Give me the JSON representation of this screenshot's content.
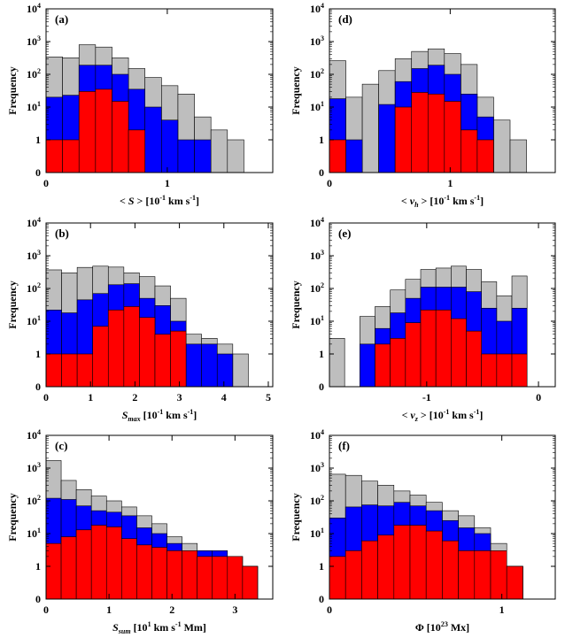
{
  "colors": {
    "all": "#bebebe",
    "mid": "#0000ff",
    "strong": "#ff0000",
    "edge": "#000000"
  },
  "chart_data": [
    {
      "id": "a",
      "type": "bar",
      "panel_label": "(a)",
      "xlabel": "< S > [10-1 km s-1]",
      "xlabel_parts": [
        {
          "t": "< "
        },
        {
          "t": "S",
          "i": true
        },
        {
          "t": " > [10"
        },
        {
          "t": "-1",
          "sup": true
        },
        {
          "t": " km s"
        },
        {
          "t": "-1",
          "sup": true
        },
        {
          "t": "]"
        }
      ],
      "ylabel": "Frequency",
      "xlim": [
        0,
        1.87
      ],
      "bin_width": 0.136,
      "bin_start": 0,
      "xticks": [
        {
          "v": 0,
          "label": "0"
        },
        {
          "v": 1,
          "label": "1"
        }
      ],
      "yticks": [
        "0",
        "1",
        "10",
        "10²",
        "10³",
        "10⁴"
      ],
      "series": [
        {
          "color": "all",
          "values": [
            340,
            320,
            800,
            680,
            320,
            150,
            80,
            45,
            25,
            5,
            2,
            1
          ]
        },
        {
          "color": "mid",
          "values": [
            20,
            23,
            190,
            190,
            100,
            35,
            10,
            4,
            1,
            1,
            0,
            0
          ]
        },
        {
          "color": "strong",
          "values": [
            1,
            1,
            30,
            35,
            15,
            2,
            0,
            0,
            0,
            0,
            0,
            0
          ]
        }
      ]
    },
    {
      "id": "d",
      "type": "bar",
      "panel_label": "(d)",
      "xlabel": "< vh > [10-1 km s-1]",
      "xlabel_parts": [
        {
          "t": "< "
        },
        {
          "t": "v",
          "i": true
        },
        {
          "t": "h",
          "sub": true,
          "i": true
        },
        {
          "t": " > [10"
        },
        {
          "t": "-1",
          "sup": true
        },
        {
          "t": " km s"
        },
        {
          "t": "-1",
          "sup": true
        },
        {
          "t": "]"
        }
      ],
      "ylabel": "Frequency",
      "xlim": [
        0,
        1.87
      ],
      "bin_width": 0.136,
      "bin_start": 0,
      "xticks": [
        {
          "v": 0,
          "label": "0"
        },
        {
          "v": 1,
          "label": "1"
        }
      ],
      "yticks": [
        "0",
        "1",
        "10",
        "10²",
        "10³",
        "10⁴"
      ],
      "series": [
        {
          "color": "all",
          "values": [
            260,
            20,
            50,
            130,
            300,
            500,
            600,
            430,
            200,
            20,
            4,
            1
          ]
        },
        {
          "color": "mid",
          "values": [
            18,
            1,
            0,
            12,
            60,
            150,
            190,
            100,
            25,
            5,
            0,
            0
          ]
        },
        {
          "color": "strong",
          "values": [
            1,
            0,
            0,
            0,
            10,
            28,
            25,
            15,
            2,
            1,
            0,
            0
          ]
        }
      ]
    },
    {
      "id": "b",
      "type": "bar",
      "panel_label": "(b)",
      "xlabel": "Smax [10-1 km s-1]",
      "xlabel_parts": [
        {
          "t": "S",
          "i": true
        },
        {
          "t": "max",
          "sub": true,
          "i": true
        },
        {
          "t": " [10"
        },
        {
          "t": "-1",
          "sup": true
        },
        {
          "t": " km s"
        },
        {
          "t": "-1",
          "sup": true
        },
        {
          "t": "]"
        }
      ],
      "ylabel": "Frequency",
      "xlim": [
        0,
        5.1
      ],
      "bin_width": 0.35,
      "bin_start": 0,
      "xticks": [
        {
          "v": 0,
          "label": "0"
        },
        {
          "v": 1,
          "label": "1"
        },
        {
          "v": 2,
          "label": "2"
        },
        {
          "v": 3,
          "label": "3"
        },
        {
          "v": 4,
          "label": "4"
        },
        {
          "v": 5,
          "label": "5"
        }
      ],
      "yticks": [
        "0",
        "1",
        "10",
        "10²",
        "10³",
        "10⁴"
      ],
      "series": [
        {
          "color": "all",
          "values": [
            370,
            300,
            440,
            480,
            450,
            300,
            230,
            120,
            50,
            4,
            3,
            2,
            1,
            0
          ]
        },
        {
          "color": "mid",
          "values": [
            22,
            18,
            45,
            70,
            130,
            140,
            50,
            30,
            10,
            2,
            2,
            1,
            0,
            0
          ]
        },
        {
          "color": "strong",
          "values": [
            1,
            1,
            1,
            7,
            22,
            28,
            13,
            4,
            5,
            0,
            0,
            0,
            0,
            0
          ]
        }
      ]
    },
    {
      "id": "e",
      "type": "bar",
      "panel_label": "(e)",
      "xlabel": "< vz > [10-1 km s-1]",
      "xlabel_parts": [
        {
          "t": "< "
        },
        {
          "t": "v",
          "i": true
        },
        {
          "t": "z",
          "sub": true,
          "i": true
        },
        {
          "t": " > [10"
        },
        {
          "t": "-1",
          "sup": true
        },
        {
          "t": " km s"
        },
        {
          "t": "-1",
          "sup": true
        },
        {
          "t": "]"
        }
      ],
      "ylabel": "Frequency",
      "xlim": [
        -1.87,
        0.15
      ],
      "bin_width": 0.136,
      "bin_start": -1.87,
      "xticks": [
        {
          "v": -1,
          "label": "-1"
        },
        {
          "v": 0,
          "label": "0"
        }
      ],
      "yticks": [
        "0",
        "1",
        "10",
        "10²",
        "10³",
        "10⁴"
      ],
      "series": [
        {
          "color": "all",
          "values": [
            3,
            0,
            14,
            28,
            90,
            190,
            380,
            420,
            480,
            380,
            160,
            60,
            240,
            0
          ]
        },
        {
          "color": "mid",
          "values": [
            0,
            0,
            2,
            6,
            18,
            50,
            110,
            110,
            110,
            80,
            25,
            10,
            25,
            0
          ]
        },
        {
          "color": "strong",
          "values": [
            0,
            0,
            0,
            2,
            3,
            9,
            22,
            22,
            12,
            5,
            1,
            1,
            1,
            0
          ]
        }
      ]
    },
    {
      "id": "c",
      "type": "bar",
      "panel_label": "(c)",
      "xlabel": "Ssum [101 km s-1 Mm]",
      "xlabel_parts": [
        {
          "t": "S",
          "i": true
        },
        {
          "t": "sum",
          "sub": true,
          "i": true
        },
        {
          "t": " [10"
        },
        {
          "t": "1",
          "sup": true
        },
        {
          "t": " km s"
        },
        {
          "t": "-1",
          "sup": true
        },
        {
          "t": " Mm]"
        }
      ],
      "ylabel": "Frequency",
      "xlim": [
        0,
        3.6
      ],
      "bin_width": 0.24,
      "bin_start": 0,
      "xticks": [
        {
          "v": 0,
          "label": "0"
        },
        {
          "v": 1,
          "label": "1"
        },
        {
          "v": 2,
          "label": "2"
        },
        {
          "v": 3,
          "label": "3"
        }
      ],
      "yticks": [
        "0",
        "1",
        "10",
        "10²",
        "10³",
        "10⁴"
      ],
      "series": [
        {
          "color": "all",
          "values": [
            1700,
            420,
            220,
            140,
            100,
            65,
            35,
            20,
            8,
            5,
            3,
            2,
            2,
            1
          ]
        },
        {
          "color": "mid",
          "values": [
            120,
            110,
            70,
            50,
            45,
            35,
            15,
            10,
            5,
            3,
            3,
            3,
            2,
            1
          ]
        },
        {
          "color": "strong",
          "values": [
            5,
            8,
            13,
            18,
            16,
            7,
            4.5,
            3.8,
            3,
            3,
            2,
            2,
            2,
            1
          ]
        }
      ]
    },
    {
      "id": "f",
      "type": "bar",
      "panel_label": "(f)",
      "xlabel": "Φ [1023 Mx]",
      "xlabel_parts": [
        {
          "t": "Φ [10"
        },
        {
          "t": "23",
          "sup": true
        },
        {
          "t": " Mx]"
        }
      ],
      "ylabel": "Frequency",
      "xlim": [
        0,
        1.31
      ],
      "bin_width": 0.0935,
      "bin_start": 0,
      "xticks": [
        {
          "v": 0,
          "label": "0"
        },
        {
          "v": 1,
          "label": "1"
        }
      ],
      "yticks": [
        "0",
        "1",
        "10",
        "10²",
        "10³",
        "10⁴"
      ],
      "series": [
        {
          "color": "all",
          "values": [
            650,
            600,
            400,
            300,
            200,
            150,
            90,
            50,
            35,
            15,
            5,
            1,
            0,
            0
          ]
        },
        {
          "color": "mid",
          "values": [
            30,
            65,
            75,
            70,
            90,
            70,
            50,
            25,
            15,
            10,
            2,
            1,
            0,
            0
          ]
        },
        {
          "color": "strong",
          "values": [
            2,
            3,
            6,
            9,
            18,
            18,
            12,
            6,
            3,
            3,
            3,
            1,
            0,
            0
          ]
        }
      ]
    }
  ]
}
